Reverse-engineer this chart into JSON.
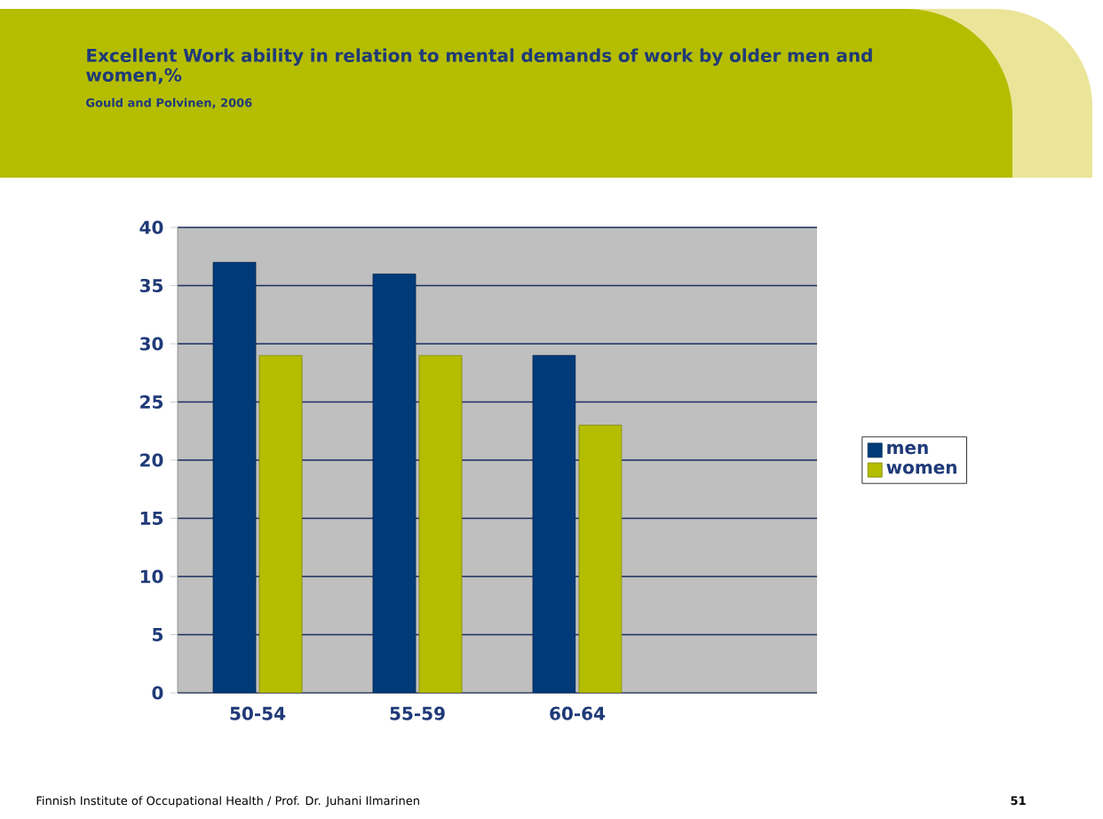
{
  "chart_data": {
    "type": "bar",
    "title": "Excellent Work ability in relation to mental demands of work by older men and women,%",
    "subtitle": "Gould and Polvinen, 2006",
    "categories": [
      "50-54",
      "55-59",
      "60-64",
      null
    ],
    "series": [
      {
        "name": "men",
        "color": "#003a78",
        "values": [
          37,
          36,
          29,
          null
        ]
      },
      {
        "name": "women",
        "color": "#b5bd00",
        "values": [
          29,
          29,
          23,
          null
        ]
      }
    ],
    "ylim": [
      0,
      40
    ],
    "yticks": [
      0,
      5,
      10,
      15,
      20,
      25,
      30,
      35,
      40
    ],
    "grid": "y",
    "legend": "right",
    "annotations": [
      "Finnish Institute of Occupational Health / Prof. Dr. Juhani Ilmarinen",
      "51"
    ]
  }
}
